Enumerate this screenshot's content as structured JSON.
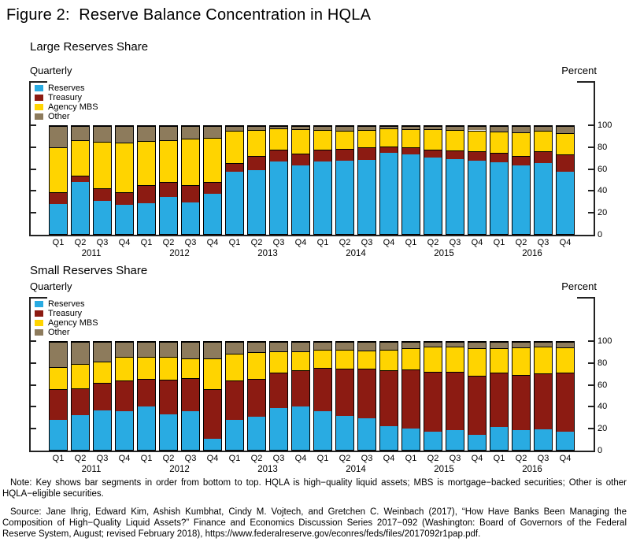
{
  "page": {
    "title": "Figure 2:  Reserve Balance Concentration in HQLA"
  },
  "notes": {
    "note_text": "Note:  Key shows bar segments in order from bottom to top. HQLA is high−quality liquid assets; MBS is mortgage−backed securities; Other is other HQLA−eligible securities.",
    "source_text": "Source:  Jane Ihrig, Edward Kim, Ashish Kumbhat, Cindy M. Vojtech, and Gretchen C. Weinbach (2017), “How Have Banks Been Managing the Composition of High−Quality Liquid Assets?” Finance and Economics Discussion Series 2017−092 (Washington:  Board of Governors of the Federal Reserve System, August; revised February 2018), https://www.federalreserve.gov/econres/feds/files/2017092r1pap.pdf."
  },
  "colors": {
    "reserves": "#29ABE2",
    "treasury": "#8C1B12",
    "agency_mbs": "#FFD400",
    "other": "#8D7B5C",
    "axis": "#222222",
    "bar_outline": "#000000"
  },
  "chart_data": [
    {
      "type": "bar",
      "stacked": true,
      "title": "Large Reserves Share",
      "left_axis_label": "Quarterly",
      "right_axis_label": "Percent",
      "ylim": [
        0,
        100
      ],
      "yticks": [
        0,
        20,
        40,
        60,
        80,
        100
      ],
      "legend_position": "top-left",
      "grid": false,
      "categories": [
        "Q1",
        "Q2",
        "Q3",
        "Q4",
        "Q1",
        "Q2",
        "Q3",
        "Q4",
        "Q1",
        "Q2",
        "Q3",
        "Q4",
        "Q1",
        "Q2",
        "Q3",
        "Q4",
        "Q1",
        "Q2",
        "Q3",
        "Q4",
        "Q1",
        "Q2",
        "Q3",
        "Q4"
      ],
      "years": [
        "2011",
        "2012",
        "2013",
        "2014",
        "2015",
        "2016"
      ],
      "series": [
        {
          "name": "Reserves",
          "color": "#29ABE2",
          "values": [
            28,
            48,
            31,
            27,
            28.5,
            34.5,
            29,
            37,
            58,
            59.5,
            67.5,
            63.5,
            67,
            68,
            68.5,
            75,
            74,
            70.5,
            69,
            68,
            66.5,
            63.5,
            65.5,
            58
          ]
        },
        {
          "name": "Treasury",
          "color": "#8C1B12",
          "values": [
            11,
            6,
            11,
            11.5,
            16.5,
            13.5,
            16.5,
            11.5,
            7.5,
            12.5,
            10.5,
            11,
            11,
            11,
            11.5,
            6,
            6,
            7.5,
            8.5,
            8.5,
            9,
            9,
            11.5,
            16
          ]
        },
        {
          "name": "Agency MBS",
          "color": "#FFD400",
          "values": [
            41,
            33,
            43.5,
            46.5,
            41,
            39,
            42.5,
            40.5,
            30,
            24.5,
            19.5,
            22.5,
            18.5,
            16.5,
            16.5,
            17,
            17,
            19,
            19,
            19.5,
            19.5,
            22,
            18.5,
            19.5
          ]
        },
        {
          "name": "Other",
          "color": "#8D7B5C",
          "values": [
            20,
            13,
            14.5,
            15,
            14,
            13,
            12,
            11,
            4.5,
            3.5,
            2.5,
            3,
            3.5,
            4.5,
            3.5,
            2,
            3,
            3,
            3.5,
            4,
            5,
            5.5,
            4.5,
            6.5
          ]
        }
      ]
    },
    {
      "type": "bar",
      "stacked": true,
      "title": "Small Reserves Share",
      "left_axis_label": "Quarterly",
      "right_axis_label": "Percent",
      "ylim": [
        0,
        100
      ],
      "yticks": [
        0,
        20,
        40,
        60,
        80,
        100
      ],
      "legend_position": "top-left",
      "grid": false,
      "categories": [
        "Q1",
        "Q2",
        "Q3",
        "Q4",
        "Q1",
        "Q2",
        "Q3",
        "Q4",
        "Q1",
        "Q2",
        "Q3",
        "Q4",
        "Q1",
        "Q2",
        "Q3",
        "Q4",
        "Q1",
        "Q2",
        "Q3",
        "Q4",
        "Q1",
        "Q2",
        "Q3",
        "Q4"
      ],
      "years": [
        "2011",
        "2012",
        "2013",
        "2014",
        "2015",
        "2016"
      ],
      "series": [
        {
          "name": "Reserves",
          "color": "#29ABE2",
          "values": [
            28,
            32,
            36.5,
            36,
            40,
            33,
            35.5,
            10,
            28,
            30.5,
            39,
            40.5,
            35.5,
            31.5,
            29,
            22,
            19.5,
            16.5,
            18,
            14,
            21.5,
            18,
            19,
            17
          ]
        },
        {
          "name": "Treasury",
          "color": "#8C1B12",
          "values": [
            28.5,
            25,
            25.5,
            28.5,
            26,
            32,
            31,
            46,
            36.5,
            35.5,
            32.5,
            33.5,
            40.5,
            44,
            46,
            51.5,
            55,
            56,
            54.5,
            54.5,
            50,
            51.5,
            51.5,
            54.5
          ]
        },
        {
          "name": "Agency MBS",
          "color": "#FFD400",
          "values": [
            20,
            22.5,
            20,
            21.5,
            20,
            21,
            18,
            28.5,
            24.5,
            24.5,
            19.5,
            17.5,
            16.5,
            17.5,
            17,
            19.5,
            20,
            23,
            23,
            26,
            22.5,
            25.5,
            25,
            23.5
          ]
        },
        {
          "name": "Other",
          "color": "#8D7B5C",
          "values": [
            23.5,
            20.5,
            18,
            14,
            14,
            14,
            15.5,
            15.5,
            11,
            9.5,
            9,
            8.5,
            7.5,
            7,
            8,
            7,
            5.5,
            4.5,
            4.5,
            5.5,
            6,
            5,
            4.5,
            5
          ]
        }
      ]
    }
  ]
}
